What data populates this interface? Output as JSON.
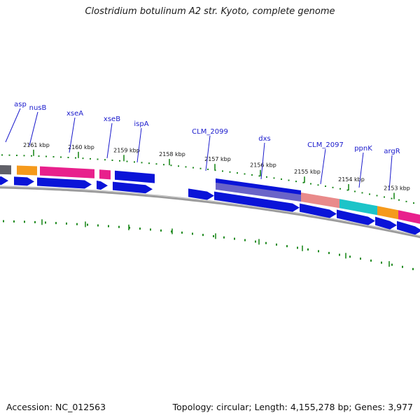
{
  "title": "Clostridium botulinum A2 str. Kyoto, complete genome",
  "footer": {
    "accession": "Accession: NC_012563",
    "summary": "Topology: circular; Length: 4,155,278 bp; Genes: 3,977"
  },
  "colors": {
    "cds_blue": "#0a14d8",
    "label_blue": "#1a1acc",
    "tick_green": "#1f8a1f",
    "backbone_gray": "#808080",
    "orange": "#f59a1c",
    "magenta": "#e8208c",
    "salmon": "#e98a8a",
    "cyan": "#1cc4c8",
    "purple": "#6a64c8",
    "dark_gray": "#606068"
  },
  "scale_labels": [
    "2161 kbp",
    "2160 kbp",
    "2159 kbp",
    "2158 kbp",
    "2157 kbp",
    "2156 kbp",
    "2155 kbp",
    "2154 kbp",
    "2153 kbp"
  ],
  "gene_labels": [
    "asp",
    "nusB",
    "xseA",
    "xseB",
    "ispA",
    "CLM_2099",
    "dxs",
    "CLM_2097",
    "ppnK",
    "argR"
  ]
}
